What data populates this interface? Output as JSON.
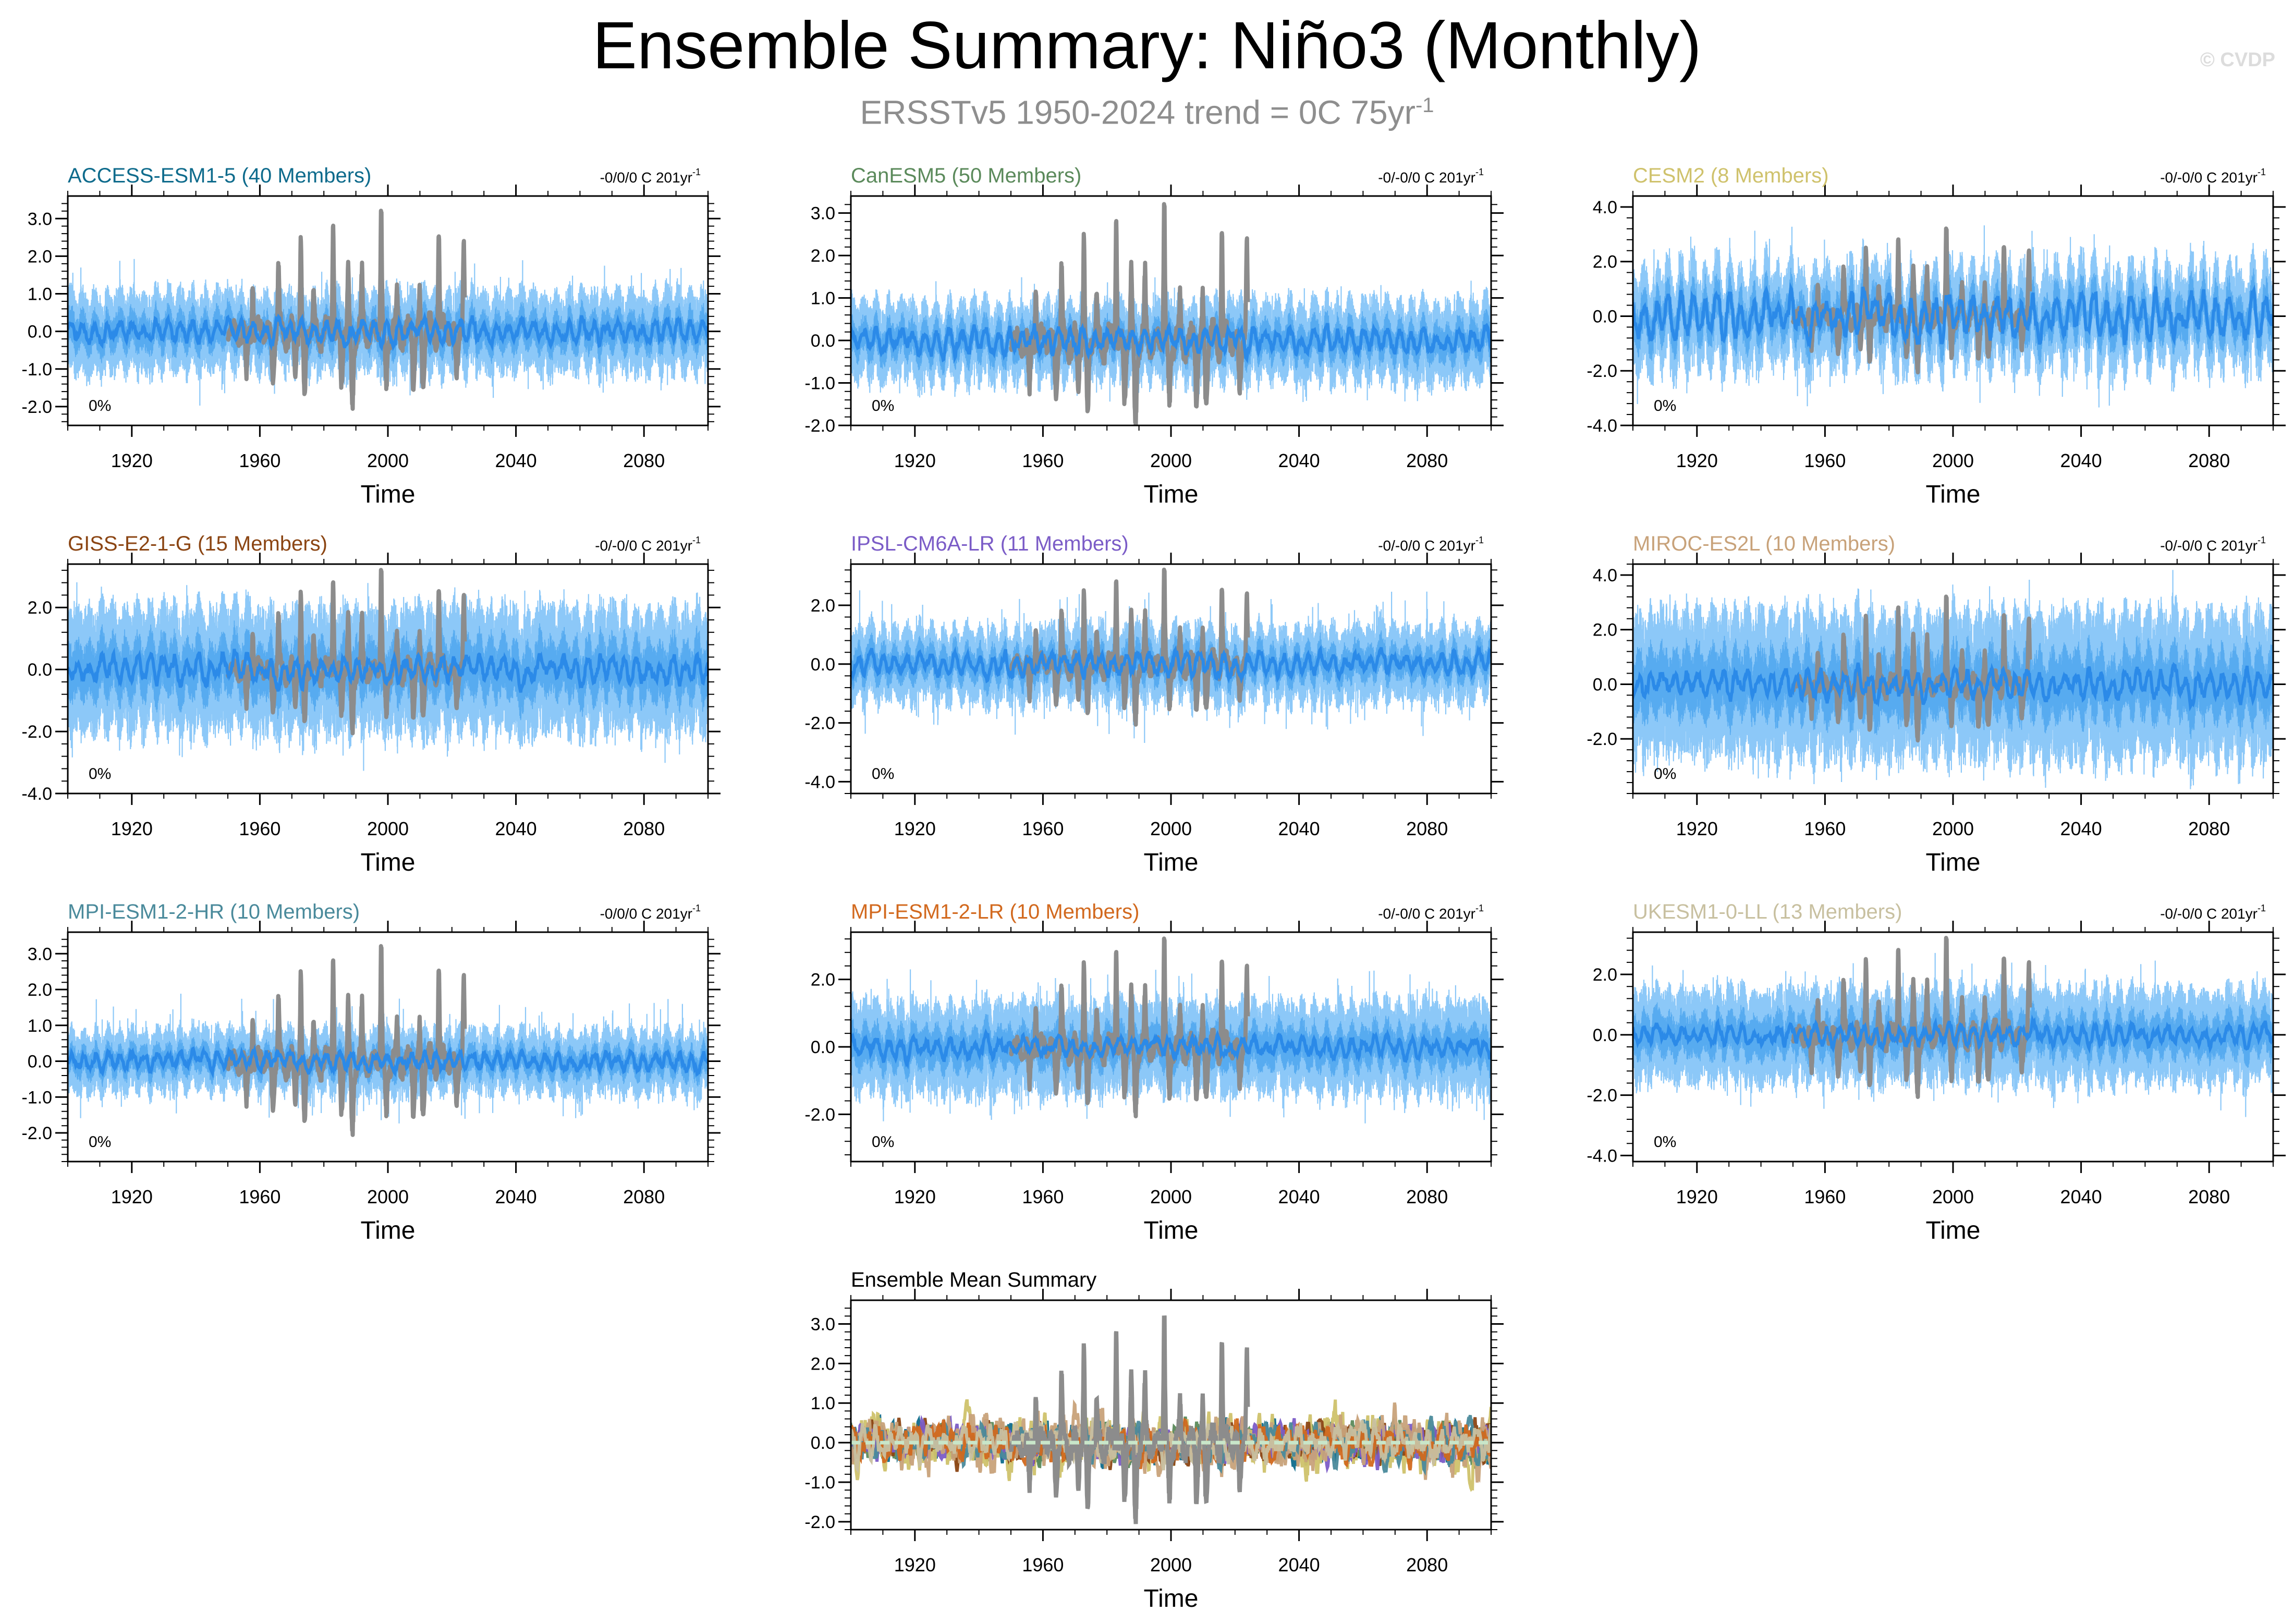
{
  "header": {
    "title": "Ensemble Summary: Niño3 (Monthly)",
    "subtitle_main": "ERSSTv5 1950-2024 trend = 0C 75yr",
    "subtitle_sup": "-1",
    "copyright": "© CVDP"
  },
  "colors": {
    "observed": "#8c8c8c",
    "ensemble_mean": "#2b8ae8",
    "ensemble_spread": "#8cc8f8",
    "ensemble_members": "#4ea6ef"
  },
  "chart_data": [
    {
      "id": "access",
      "type": "line",
      "title": "ACCESS-ESM1-5 (40 Members)",
      "title_color": "#0e6b8c",
      "trend_label": "-0/0/0 C 201yr",
      "trend_sup": "-1",
      "percent_label": "0%",
      "xlabel": "Time",
      "ylabel": "",
      "xlim": [
        1900,
        2100
      ],
      "ylim": [
        -2.5,
        3.6
      ],
      "x_ticks": [
        1920,
        1960,
        2000,
        2040,
        2080
      ],
      "x_tick_labels": [
        "1920",
        "1960",
        "2000",
        "2040",
        "2080"
      ],
      "y_ticks": [
        -2,
        -1,
        0,
        1,
        2,
        3
      ],
      "y_tick_labels": [
        "-2.0",
        "-1.0",
        "0.0",
        "1.0",
        "2.0",
        "3.0"
      ],
      "ensemble": {
        "mean_amp": 0.35,
        "spread_amp": 1.1,
        "spike_prob": 0.02,
        "spike_max": 0.8
      },
      "series": [
        {
          "name": "ERSSTv5 observed",
          "x_range": [
            1950,
            2024
          ],
          "color": "#8c8c8c"
        },
        {
          "name": "Ensemble mean",
          "x_range": [
            1900,
            2100
          ],
          "color": "#2b8ae8"
        }
      ]
    },
    {
      "id": "canesm",
      "type": "line",
      "title": "CanESM5 (50 Members)",
      "title_color": "#5b8a5b",
      "trend_label": "-0/-0/0 C 201yr",
      "trend_sup": "-1",
      "percent_label": "0%",
      "xlabel": "Time",
      "ylabel": "",
      "xlim": [
        1900,
        2100
      ],
      "ylim": [
        -2.0,
        3.4
      ],
      "x_ticks": [
        1920,
        1960,
        2000,
        2040,
        2080
      ],
      "x_tick_labels": [
        "1920",
        "1960",
        "2000",
        "2040",
        "2080"
      ],
      "y_ticks": [
        -2,
        -1,
        0,
        1,
        2,
        3
      ],
      "y_tick_labels": [
        "-2.0",
        "-1.0",
        "0.0",
        "1.0",
        "2.0",
        "3.0"
      ],
      "ensemble": {
        "mean_amp": 0.35,
        "spread_amp": 0.95,
        "spike_prob": 0.02,
        "spike_max": 0.6
      },
      "series": [
        {
          "name": "ERSSTv5 observed",
          "x_range": [
            1950,
            2024
          ],
          "color": "#8c8c8c"
        },
        {
          "name": "Ensemble mean",
          "x_range": [
            1900,
            2100
          ],
          "color": "#2b8ae8"
        }
      ]
    },
    {
      "id": "cesm2",
      "type": "line",
      "title": "CESM2 (8 Members)",
      "title_color": "#cfc26c",
      "trend_label": "-0/-0/0 C 201yr",
      "trend_sup": "-1",
      "percent_label": "0%",
      "xlabel": "Time",
      "ylabel": "",
      "xlim": [
        1900,
        2100
      ],
      "ylim": [
        -4.0,
        4.4
      ],
      "x_ticks": [
        1920,
        1960,
        2000,
        2040,
        2080
      ],
      "x_tick_labels": [
        "1920",
        "1960",
        "2000",
        "2040",
        "2080"
      ],
      "y_ticks": [
        -4,
        -2,
        0,
        2,
        4
      ],
      "y_tick_labels": [
        "-4.0",
        "-2.0",
        "0.0",
        "2.0",
        "4.0"
      ],
      "ensemble": {
        "mean_amp": 0.9,
        "spread_amp": 1.8,
        "spike_prob": 0.03,
        "spike_max": 1.2
      },
      "series": [
        {
          "name": "ERSSTv5 observed",
          "x_range": [
            1950,
            2024
          ],
          "color": "#8c8c8c"
        },
        {
          "name": "Ensemble mean",
          "x_range": [
            1900,
            2100
          ],
          "color": "#2b8ae8"
        }
      ]
    },
    {
      "id": "giss",
      "type": "line",
      "title": "GISS-E2-1-G (15 Members)",
      "title_color": "#8b4513",
      "trend_label": "-0/-0/0 C 201yr",
      "trend_sup": "-1",
      "percent_label": "0%",
      "xlabel": "Time",
      "ylabel": "",
      "xlim": [
        1900,
        2100
      ],
      "ylim": [
        -4.0,
        3.4
      ],
      "x_ticks": [
        1920,
        1960,
        2000,
        2040,
        2080
      ],
      "x_tick_labels": [
        "1920",
        "1960",
        "2000",
        "2040",
        "2080"
      ],
      "y_ticks": [
        -4,
        -2,
        0,
        2
      ],
      "y_tick_labels": [
        "-4.0",
        "-2.0",
        "0.0",
        "2.0"
      ],
      "ensemble": {
        "mean_amp": 0.5,
        "spread_amp": 2.1,
        "spike_prob": 0.02,
        "spike_max": 0.8
      },
      "series": [
        {
          "name": "ERSSTv5 observed",
          "x_range": [
            1950,
            2024
          ],
          "color": "#8c8c8c"
        },
        {
          "name": "Ensemble mean",
          "x_range": [
            1900,
            2100
          ],
          "color": "#2b8ae8"
        }
      ]
    },
    {
      "id": "ipsl",
      "type": "line",
      "title": "IPSL-CM6A-LR (11 Members)",
      "title_color": "#7b5cc7",
      "trend_label": "-0/-0/0 C 201yr",
      "trend_sup": "-1",
      "percent_label": "0%",
      "xlabel": "Time",
      "ylabel": "",
      "xlim": [
        1900,
        2100
      ],
      "ylim": [
        -4.4,
        3.4
      ],
      "x_ticks": [
        1920,
        1960,
        2000,
        2040,
        2080
      ],
      "x_tick_labels": [
        "1920",
        "1960",
        "2000",
        "2040",
        "2080"
      ],
      "y_ticks": [
        -4,
        -2,
        0,
        2
      ],
      "y_tick_labels": [
        "-4.0",
        "-2.0",
        "0.0",
        "2.0"
      ],
      "ensemble": {
        "mean_amp": 0.45,
        "spread_amp": 1.3,
        "spike_prob": 0.03,
        "spike_max": 1.2
      },
      "series": [
        {
          "name": "ERSSTv5 observed",
          "x_range": [
            1950,
            2024
          ],
          "color": "#8c8c8c"
        },
        {
          "name": "Ensemble mean",
          "x_range": [
            1900,
            2100
          ],
          "color": "#2b8ae8"
        }
      ]
    },
    {
      "id": "miroc",
      "type": "line",
      "title": "MIROC-ES2L (10 Members)",
      "title_color": "#c8a27a",
      "trend_label": "-0/-0/0 C 201yr",
      "trend_sup": "-1",
      "percent_label": "0%",
      "xlabel": "Time",
      "ylabel": "",
      "xlim": [
        1900,
        2100
      ],
      "ylim": [
        -4.0,
        4.4
      ],
      "x_ticks": [
        1920,
        1960,
        2000,
        2040,
        2080
      ],
      "x_tick_labels": [
        "1920",
        "1960",
        "2000",
        "2040",
        "2080"
      ],
      "y_ticks": [
        -2,
        0,
        2,
        4
      ],
      "y_tick_labels": [
        "-2.0",
        "0.0",
        "2.0",
        "4.0"
      ],
      "ensemble": {
        "mean_amp": 0.6,
        "spread_amp": 2.8,
        "spike_prob": 0.02,
        "spike_max": 0.9
      },
      "series": [
        {
          "name": "ERSSTv5 observed",
          "x_range": [
            1950,
            2024
          ],
          "color": "#8c8c8c"
        },
        {
          "name": "Ensemble mean",
          "x_range": [
            1900,
            2100
          ],
          "color": "#2b8ae8"
        }
      ]
    },
    {
      "id": "mpi-hr",
      "type": "line",
      "title": "MPI-ESM1-2-HR (10 Members)",
      "title_color": "#4a8a9b",
      "trend_label": "-0/0/0 C 201yr",
      "trend_sup": "-1",
      "percent_label": "0%",
      "xlabel": "Time",
      "ylabel": "",
      "xlim": [
        1900,
        2100
      ],
      "ylim": [
        -2.8,
        3.6
      ],
      "x_ticks": [
        1920,
        1960,
        2000,
        2040,
        2080
      ],
      "x_tick_labels": [
        "1920",
        "1960",
        "2000",
        "2040",
        "2080"
      ],
      "y_ticks": [
        -2,
        -1,
        0,
        1,
        2,
        3
      ],
      "y_tick_labels": [
        "-2.0",
        "-1.0",
        "0.0",
        "1.0",
        "2.0",
        "3.0"
      ],
      "ensemble": {
        "mean_amp": 0.3,
        "spread_amp": 0.9,
        "spike_prob": 0.025,
        "spike_max": 0.9
      },
      "series": [
        {
          "name": "ERSSTv5 observed",
          "x_range": [
            1950,
            2024
          ],
          "color": "#8c8c8c"
        },
        {
          "name": "Ensemble mean",
          "x_range": [
            1900,
            2100
          ],
          "color": "#2b8ae8"
        }
      ]
    },
    {
      "id": "mpi-lr",
      "type": "line",
      "title": "MPI-ESM1-2-LR (10 Members)",
      "title_color": "#d2691e",
      "trend_label": "-0/-0/0 C 201yr",
      "trend_sup": "-1",
      "percent_label": "0%",
      "xlabel": "Time",
      "ylabel": "",
      "xlim": [
        1900,
        2100
      ],
      "ylim": [
        -3.4,
        3.4
      ],
      "x_ticks": [
        1920,
        1960,
        2000,
        2040,
        2080
      ],
      "x_tick_labels": [
        "1920",
        "1960",
        "2000",
        "2040",
        "2080"
      ],
      "y_ticks": [
        -2,
        0,
        2
      ],
      "y_tick_labels": [
        "-2.0",
        "0.0",
        "2.0"
      ],
      "ensemble": {
        "mean_amp": 0.35,
        "spread_amp": 1.4,
        "spike_prob": 0.03,
        "spike_max": 1.0
      },
      "series": [
        {
          "name": "ERSSTv5 observed",
          "x_range": [
            1950,
            2024
          ],
          "color": "#8c8c8c"
        },
        {
          "name": "Ensemble mean",
          "x_range": [
            1900,
            2100
          ],
          "color": "#2b8ae8"
        }
      ]
    },
    {
      "id": "ukesm",
      "type": "line",
      "title": "UKESM1-0-LL (13 Members)",
      "title_color": "#c8c0a0",
      "trend_label": "-0/-0/0 C 201yr",
      "trend_sup": "-1",
      "percent_label": "0%",
      "xlabel": "Time",
      "ylabel": "",
      "xlim": [
        1900,
        2100
      ],
      "ylim": [
        -4.2,
        3.4
      ],
      "x_ticks": [
        1920,
        1960,
        2000,
        2040,
        2080
      ],
      "x_tick_labels": [
        "1920",
        "1960",
        "2000",
        "2040",
        "2080"
      ],
      "y_ticks": [
        -4,
        -2,
        0,
        2
      ],
      "y_tick_labels": [
        "-4.0",
        "-2.0",
        "0.0",
        "2.0"
      ],
      "ensemble": {
        "mean_amp": 0.4,
        "spread_amp": 1.6,
        "spike_prob": 0.02,
        "spike_max": 1.0
      },
      "series": [
        {
          "name": "ERSSTv5 observed",
          "x_range": [
            1950,
            2024
          ],
          "color": "#8c8c8c"
        },
        {
          "name": "Ensemble mean",
          "x_range": [
            1900,
            2100
          ],
          "color": "#2b8ae8"
        }
      ]
    },
    {
      "id": "summary",
      "type": "line",
      "title": "Ensemble Mean Summary",
      "title_color": "#000000",
      "trend_label": "",
      "trend_sup": "",
      "percent_label": "",
      "xlabel": "Time",
      "ylabel": "",
      "xlim": [
        1900,
        2100
      ],
      "ylim": [
        -2.2,
        3.6
      ],
      "x_ticks": [
        1920,
        1960,
        2000,
        2040,
        2080
      ],
      "x_tick_labels": [
        "1920",
        "1960",
        "2000",
        "2040",
        "2080"
      ],
      "y_ticks": [
        -2,
        -1,
        0,
        1,
        2,
        3
      ],
      "y_tick_labels": [
        "-2.0",
        "-1.0",
        "0.0",
        "1.0",
        "2.0",
        "3.0"
      ],
      "ensemble": {
        "mean_amp": 0.6,
        "spread_amp": 0,
        "spike_prob": 0,
        "spike_max": 0
      },
      "series": [
        {
          "name": "ERSSTv5 observed",
          "x_range": [
            1950,
            2024
          ],
          "color": "#8c8c8c"
        },
        {
          "name": "ACCESS-ESM1-5",
          "color": "#0e6b8c"
        },
        {
          "name": "CanESM5",
          "color": "#5b8a5b"
        },
        {
          "name": "CESM2",
          "color": "#cfc26c"
        },
        {
          "name": "GISS-E2-1-G",
          "color": "#8b4513"
        },
        {
          "name": "IPSL-CM6A-LR",
          "color": "#7b5cc7"
        },
        {
          "name": "MIROC-ES2L",
          "color": "#c8a27a"
        },
        {
          "name": "MPI-ESM1-2-HR",
          "color": "#4a8a9b"
        },
        {
          "name": "MPI-ESM1-2-LR",
          "color": "#d2691e"
        },
        {
          "name": "UKESM1-0-LL",
          "color": "#c8c0a0"
        }
      ],
      "overlay_lines": [
        {
          "name": "zero-reference",
          "y": 0,
          "color": "#c8e6c9"
        }
      ]
    }
  ]
}
